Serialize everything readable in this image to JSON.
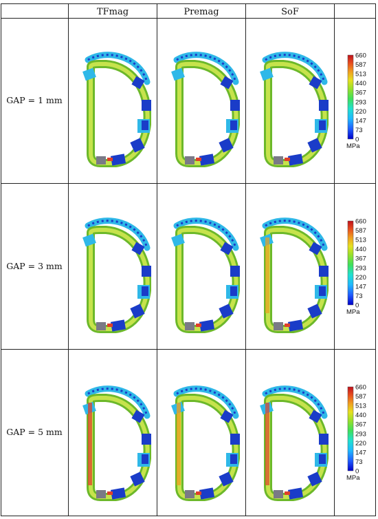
{
  "header": {
    "columns": [
      "TFmag",
      "Premag",
      "SoF",
      ""
    ]
  },
  "rows": [
    {
      "label": "GAP = 1 mm",
      "gap_mm": 1
    },
    {
      "label": "GAP = 3 mm",
      "gap_mm": 3
    },
    {
      "label": "GAP = 5 mm",
      "gap_mm": 5
    }
  ],
  "colorbar": {
    "ticks": [
      "660",
      "587",
      "513",
      "440",
      "367",
      "293",
      "220",
      "147",
      "73",
      "0"
    ],
    "unit": "MPa",
    "colors": [
      "#0000c8",
      "#1f5cff",
      "#1fb8ff",
      "#20e0d0",
      "#3fe05a",
      "#9be02a",
      "#e6e020",
      "#f0a020",
      "#e8501e",
      "#c0101c"
    ]
  },
  "palette": {
    "coil": "#a8d84a",
    "coil_dark": "#6cb82a",
    "hot": "#e0402a",
    "blue": "#1a3cc8",
    "cyan": "#2fb8e8",
    "grey": "#7a7a86"
  }
}
